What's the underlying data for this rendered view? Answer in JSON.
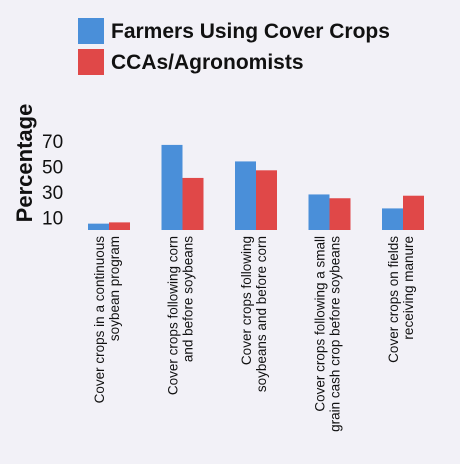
{
  "chart_data": {
    "type": "bar",
    "categories": [
      [
        "Cover crops in a continuous",
        "soybean program"
      ],
      [
        "Cover crops following corn",
        "and before soybeans"
      ],
      [
        "Cover crops following",
        "soybeans and before corn"
      ],
      [
        "Cover crops following a small",
        "grain cash crop before soybeans"
      ],
      [
        "Cover crops on fields",
        "receiving manure"
      ]
    ],
    "series": [
      {
        "name": "Farmers Using Cover Crops",
        "color": "#4a8fd9",
        "values": [
          5,
          67,
          54,
          28,
          17
        ]
      },
      {
        "name": "CCAs/Agronomists",
        "color": "#e04848",
        "values": [
          6,
          41,
          47,
          25,
          27
        ]
      }
    ],
    "ylabel": "Percentage",
    "yticks": [
      10,
      30,
      50,
      70
    ],
    "ylim": [
      0,
      78
    ],
    "grid": false,
    "legend": "top"
  }
}
